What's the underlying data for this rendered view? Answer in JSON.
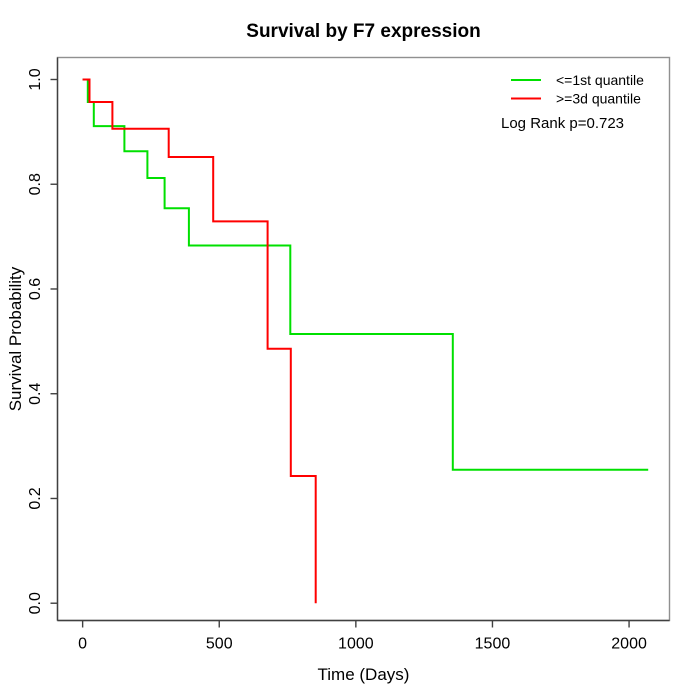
{
  "chart_data": {
    "type": "line",
    "subtype": "kaplan-meier-step-curves",
    "title": "Survival by F7 expression",
    "xlabel": "Time (Days)",
    "ylabel": "Survival Probability",
    "x_ticks": [
      0,
      500,
      1000,
      1500,
      2000
    ],
    "x_tick_labels": [
      "0",
      "500",
      "1000",
      "1500",
      "2000"
    ],
    "y_ticks": [
      0.0,
      0.2,
      0.4,
      0.6,
      0.8,
      1.0
    ],
    "y_tick_labels": [
      "0.0",
      "0.2",
      "0.4",
      "0.6",
      "0.8",
      "1.0"
    ],
    "xlim": [
      -92,
      2148
    ],
    "ylim": [
      -0.033,
      1.042
    ],
    "grid": false,
    "legend_position": "top-right",
    "annotation": "Log Rank p=0.723",
    "series": [
      {
        "name": "<=1st quantile",
        "color": "#00E000",
        "step_points": [
          [
            0,
            1.0
          ],
          [
            19,
            1.0
          ],
          [
            19,
            0.957
          ],
          [
            41,
            0.957
          ],
          [
            41,
            0.911
          ],
          [
            153,
            0.911
          ],
          [
            153,
            0.863
          ],
          [
            237,
            0.863
          ],
          [
            237,
            0.812
          ],
          [
            300,
            0.812
          ],
          [
            300,
            0.754
          ],
          [
            389,
            0.754
          ],
          [
            389,
            0.683
          ],
          [
            760,
            0.683
          ],
          [
            760,
            0.514
          ],
          [
            1355,
            0.514
          ],
          [
            1355,
            0.255
          ],
          [
            2070,
            0.255
          ]
        ]
      },
      {
        "name": ">=3d quantile",
        "color": "#FF0000",
        "step_points": [
          [
            0,
            1.0
          ],
          [
            25,
            1.0
          ],
          [
            25,
            0.957
          ],
          [
            109,
            0.957
          ],
          [
            109,
            0.906
          ],
          [
            315,
            0.906
          ],
          [
            315,
            0.852
          ],
          [
            478,
            0.852
          ],
          [
            478,
            0.729
          ],
          [
            677,
            0.729
          ],
          [
            677,
            0.486
          ],
          [
            762,
            0.486
          ],
          [
            762,
            0.243
          ],
          [
            853,
            0.243
          ],
          [
            853,
            0.0
          ]
        ]
      }
    ]
  }
}
